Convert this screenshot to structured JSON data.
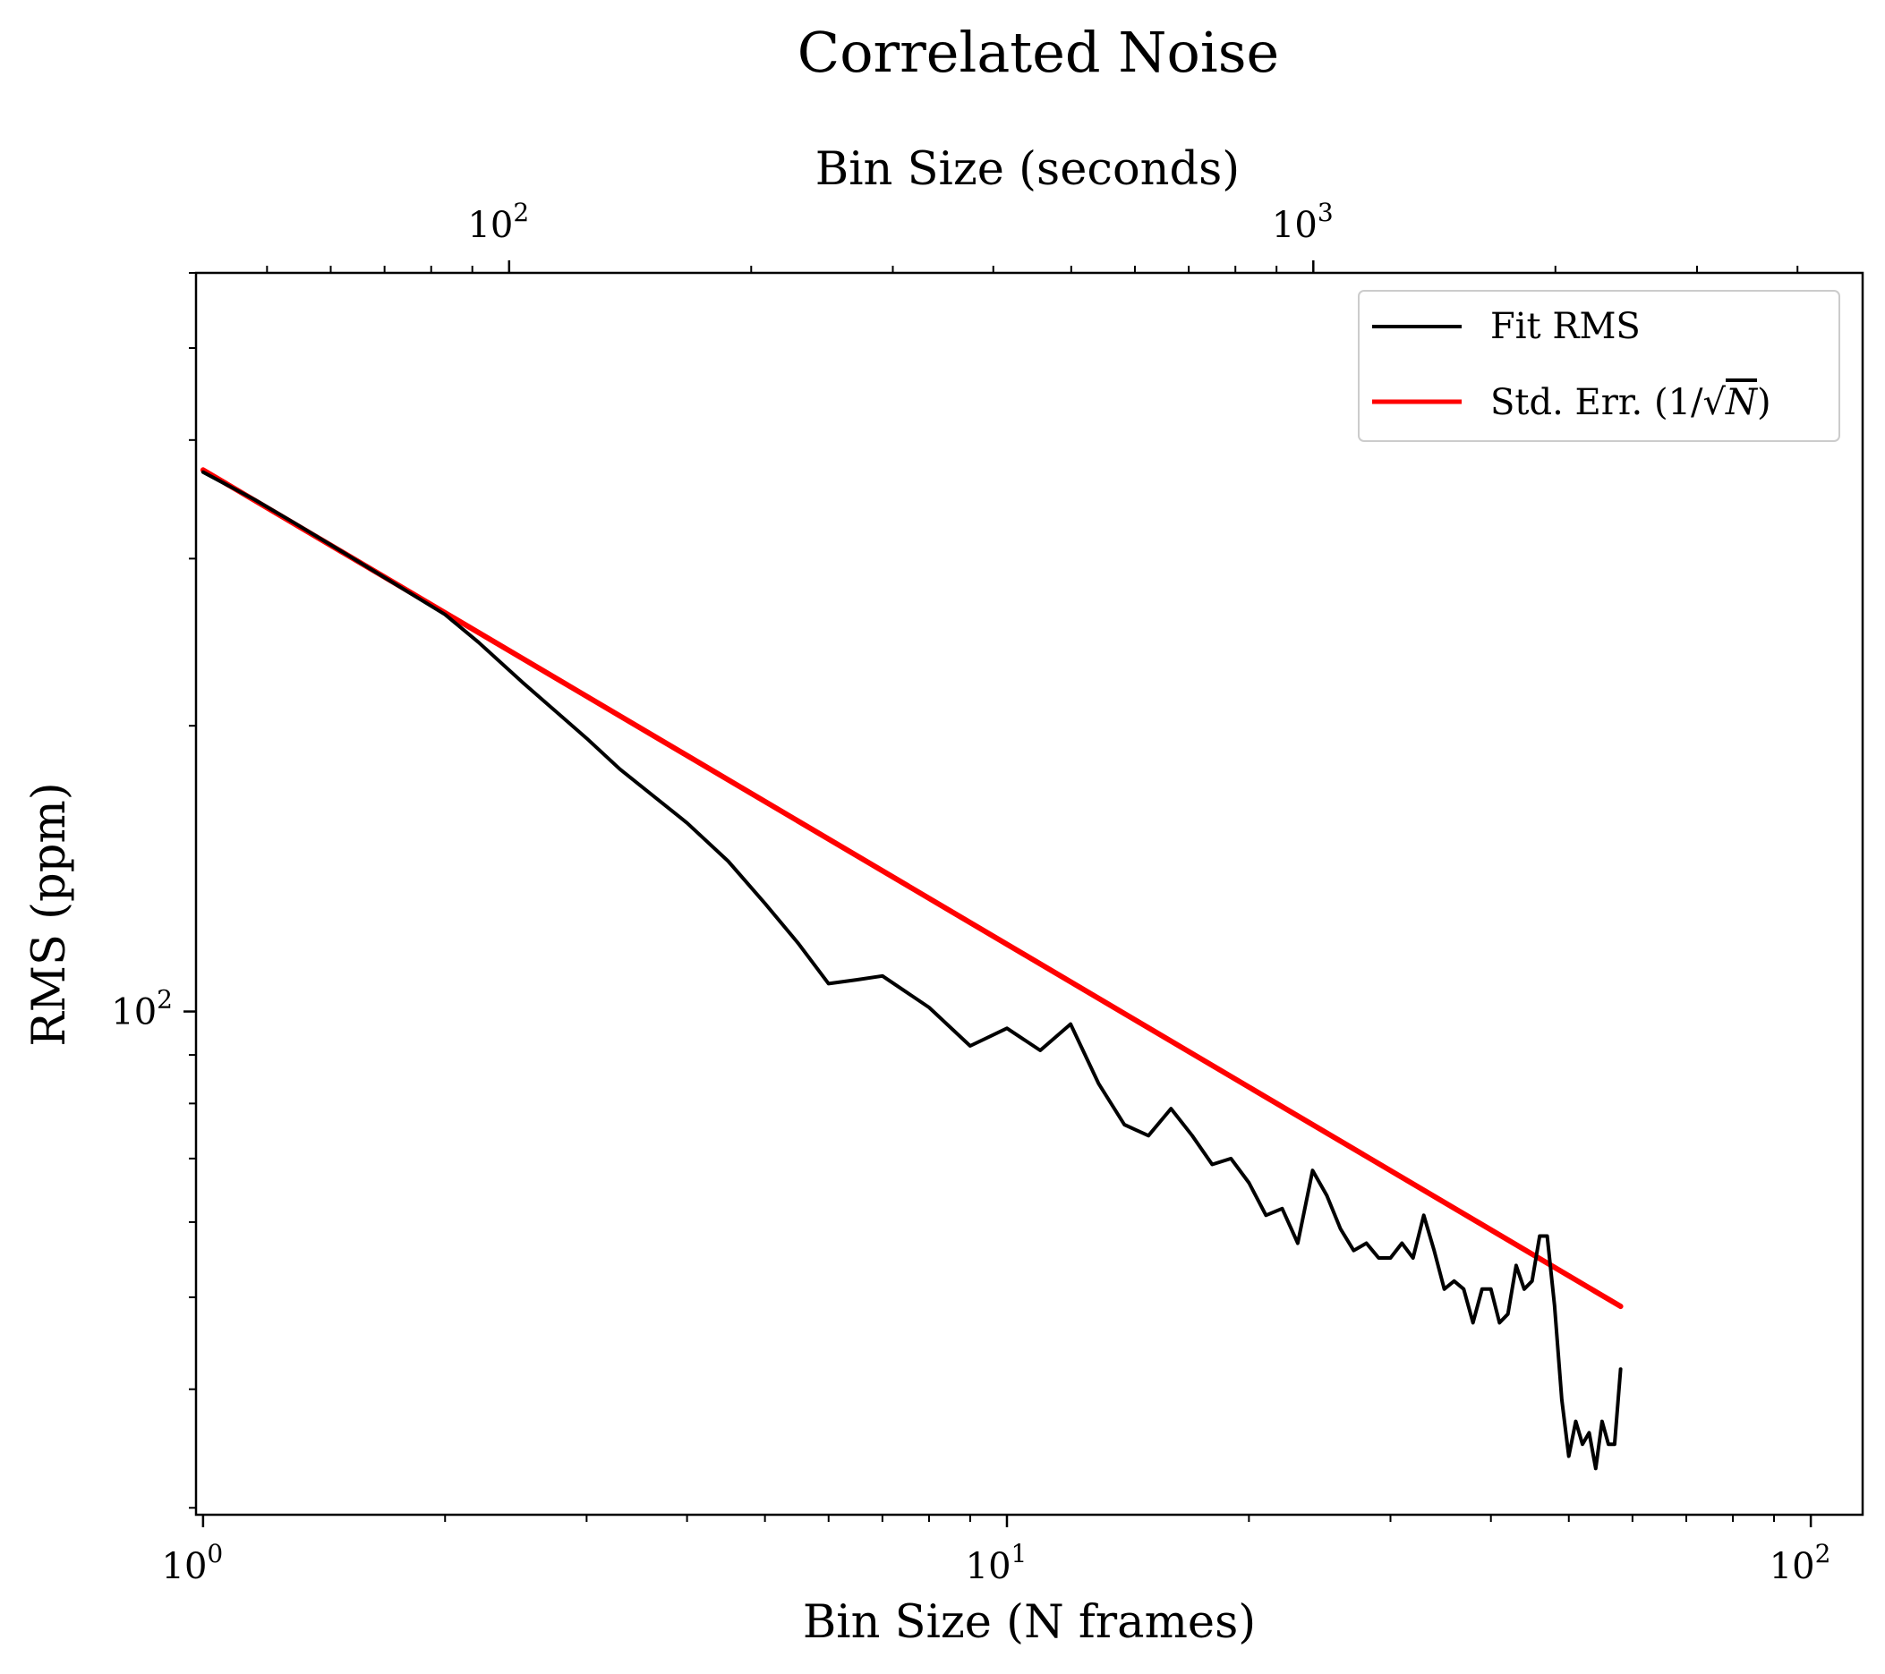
{
  "chart_data": {
    "type": "line",
    "title": "Correlated Noise",
    "xlabel": "Bin Size (N frames)",
    "ylabel": "RMS (ppm)",
    "xlabel_top": "Bin Size (seconds)",
    "xscale": "log",
    "yscale": "log",
    "xlim": [
      0.98,
      116
    ],
    "ylim": [
      29.5,
      600
    ],
    "xlim_top": [
      40.8,
      4820
    ],
    "grid": false,
    "legend_position": "upper right",
    "xticks": [
      {
        "value": 1,
        "base": "10",
        "exp": "0"
      },
      {
        "value": 10,
        "base": "10",
        "exp": "1"
      },
      {
        "value": 100,
        "base": "10",
        "exp": "2"
      }
    ],
    "yticks": [
      {
        "value": 100,
        "base": "10",
        "exp": "2"
      }
    ],
    "xticks_top": [
      {
        "value": 100,
        "base": "10",
        "exp": "2"
      },
      {
        "value": 1000,
        "base": "10",
        "exp": "3"
      }
    ],
    "series": [
      {
        "name": "Fit RMS",
        "color": "#000000",
        "x": [
          1,
          1.16,
          1.3,
          1.5,
          1.7,
          2,
          2.2,
          2.5,
          3,
          3.3,
          4,
          4.5,
          5,
          5.5,
          6,
          6.5,
          7,
          8,
          9,
          10,
          11,
          12,
          13,
          14,
          15,
          16,
          17,
          18,
          19,
          20,
          21,
          22,
          23,
          24,
          25,
          26,
          27,
          28,
          29,
          30,
          31,
          32,
          33,
          34,
          35,
          36,
          37,
          38,
          39,
          40,
          41,
          42,
          43,
          44,
          45,
          46,
          47,
          48,
          49,
          50,
          51,
          52,
          53,
          54,
          55,
          56,
          57,
          58
        ],
        "y": [
          370,
          346,
          327,
          304,
          285,
          262,
          245,
          222,
          194,
          180,
          158,
          144,
          130,
          118,
          107,
          108,
          109,
          101,
          92,
          96,
          91,
          97,
          84,
          76,
          74,
          79,
          74,
          69,
          70,
          66,
          61,
          62,
          57,
          68,
          64,
          59,
          56,
          57,
          55,
          55,
          57,
          55,
          61,
          56,
          51,
          52,
          51,
          47,
          51,
          51,
          47,
          48,
          54,
          51,
          52,
          58,
          58,
          49,
          39,
          34,
          37,
          35,
          36,
          33,
          37,
          35,
          35,
          42
        ]
      },
      {
        "name": "Std. Err. (1/√N)",
        "color": "#ff0000",
        "x": [
          1,
          58
        ],
        "y": [
          372,
          48.9
        ]
      }
    ]
  },
  "legend": {
    "items": [
      {
        "label": "Fit RMS",
        "color": "#000000"
      },
      {
        "label_prefix": "Std. Err. (1/",
        "label_sqrt": "√",
        "label_var": "N",
        "label_suffix": ")",
        "color": "#ff0000"
      }
    ]
  }
}
